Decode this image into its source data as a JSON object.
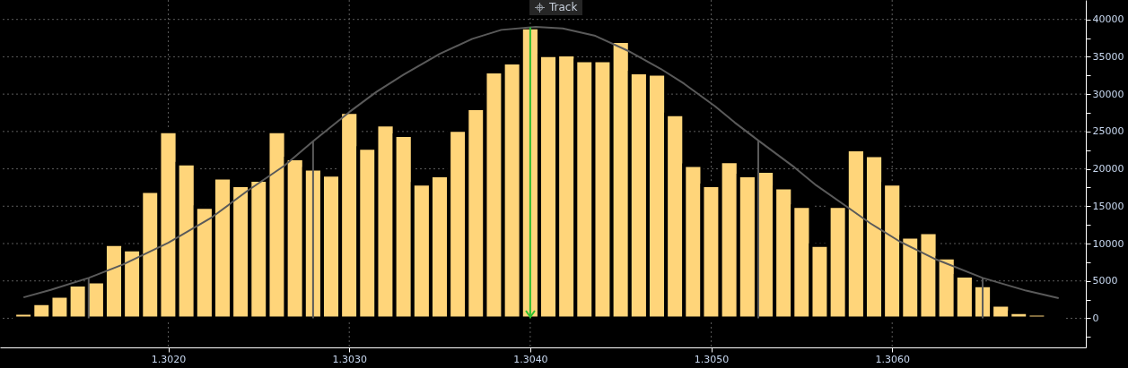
{
  "chart_data": {
    "type": "histogram",
    "annotations": [
      "Track"
    ],
    "bins": [
      1.30115,
      1.30125,
      1.30135,
      1.30145,
      1.30155,
      1.30165,
      1.30175,
      1.30185,
      1.30195,
      1.30205,
      1.30215,
      1.30225,
      1.30235,
      1.30245,
      1.30255,
      1.30265,
      1.30275,
      1.30285,
      1.30295,
      1.30305,
      1.30315,
      1.30325,
      1.30335,
      1.30345,
      1.30355,
      1.30365,
      1.30375,
      1.30385,
      1.30395,
      1.30405,
      1.30415,
      1.30425,
      1.30435,
      1.30445,
      1.30455,
      1.30465,
      1.30475,
      1.30485,
      1.30495,
      1.30505,
      1.30515,
      1.30525,
      1.30535,
      1.30545,
      1.30555,
      1.30565,
      1.30575,
      1.30585,
      1.30595,
      1.30605,
      1.30615,
      1.30625,
      1.30635,
      1.30645,
      1.30655,
      1.30665,
      1.30675,
      1.30685,
      1.30695
    ],
    "values": [
      700,
      2000,
      3000,
      4500,
      4900,
      9900,
      9200,
      17000,
      25000,
      20700,
      14900,
      18800,
      17800,
      18500,
      25000,
      21400,
      20000,
      19200,
      27600,
      22800,
      25900,
      24500,
      18000,
      19100,
      25200,
      28100,
      33000,
      34200,
      38900,
      35200,
      35300,
      34500,
      34500,
      37100,
      32900,
      32700,
      27300,
      20500,
      17800,
      21000,
      19100,
      19700,
      17500,
      15000,
      9800,
      15000,
      22600,
      21800,
      18000,
      10900,
      11500,
      8100,
      5700,
      4400,
      1800,
      800,
      600,
      300
    ],
    "color": "#ffd57a",
    "series": [
      {
        "type": "line",
        "color": "#5a5a5a",
        "x": [
          1.3012,
          1.30135,
          1.30156,
          1.30175,
          1.302,
          1.30224,
          1.30244,
          1.30264,
          1.3028,
          1.303,
          1.30315,
          1.3033,
          1.3035,
          1.30368,
          1.30384,
          1.30403,
          1.30418,
          1.30436,
          1.30454,
          1.30472,
          1.30485,
          1.30502,
          1.30513,
          1.30526,
          1.30546,
          1.30558,
          1.30574,
          1.30588,
          1.30604,
          1.30624,
          1.3065,
          1.30674,
          1.30692
        ],
        "values": [
          2800,
          3800,
          5400,
          7200,
          10100,
          13500,
          17100,
          20400,
          23700,
          27600,
          30300,
          32600,
          35400,
          37400,
          38600,
          39000,
          38800,
          37800,
          35800,
          33400,
          31400,
          28400,
          26200,
          23800,
          20200,
          17800,
          15100,
          12700,
          10300,
          7900,
          5400,
          3700,
          2700
        ]
      }
    ],
    "ref_lines": [
      {
        "axis": "x",
        "value": 1.304,
        "color": "#2fbf2f"
      },
      {
        "axis": "x",
        "value": 1.30156,
        "color": "#5a5a5a"
      },
      {
        "axis": "x",
        "value": 1.3028,
        "color": "#5a5a5a"
      },
      {
        "axis": "x",
        "value": 1.30526,
        "color": "#5a5a5a"
      },
      {
        "axis": "x",
        "value": 1.3065,
        "color": "#5a5a5a"
      }
    ],
    "xlim": [
      1.30107,
      1.30707
    ],
    "xticks": [
      {
        "value": 1.302,
        "label": "1.3020"
      },
      {
        "value": 1.303,
        "label": "1.3030"
      },
      {
        "value": 1.304,
        "label": "1.3040"
      },
      {
        "value": 1.305,
        "label": "1.3050"
      },
      {
        "value": 1.306,
        "label": "1.3060"
      }
    ],
    "ylim": [
      -3900,
      42600
    ],
    "yticks": [
      {
        "value": -2500,
        "label": null
      },
      0,
      {
        "value": 2500,
        "label": null
      },
      5000,
      {
        "value": 7500,
        "label": null
      },
      10000,
      {
        "value": 12500,
        "label": null
      },
      15000,
      {
        "value": 17500,
        "label": null
      },
      20000,
      {
        "value": 22500,
        "label": null
      },
      25000,
      {
        "value": 27500,
        "label": null
      },
      30000,
      {
        "value": 32500,
        "label": null
      },
      35000,
      {
        "value": 37500,
        "label": null
      },
      40000
    ],
    "grid": true
  }
}
